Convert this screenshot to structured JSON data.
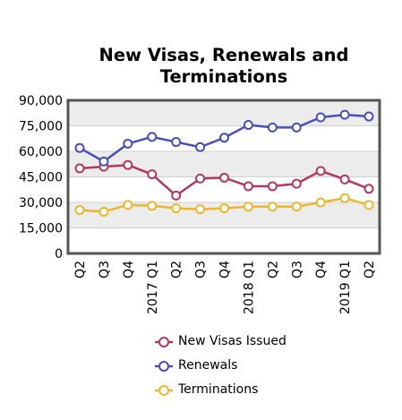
{
  "chart_data": {
    "type": "line",
    "title_lines": [
      "New Visas, Renewals and",
      "Terminations"
    ],
    "categories": [
      "Q2",
      "Q3",
      "Q4",
      "2017 Q1",
      "Q2",
      "Q3",
      "Q4",
      "2018 Q1",
      "Q2",
      "Q3",
      "Q4",
      "2019 Q1",
      "Q2"
    ],
    "ylim": [
      0,
      90000
    ],
    "yticks": [
      0,
      15000,
      30000,
      45000,
      60000,
      75000,
      90000
    ],
    "ytick_labels": [
      "0",
      "15,000",
      "30,000",
      "45,000",
      "60,000",
      "75,000",
      "90,000"
    ],
    "grid": true,
    "legend_position": "bottom",
    "series": [
      {
        "name": "New Visas Issued",
        "color": "#b03a5e",
        "values": [
          50000,
          51000,
          52000,
          46500,
          34000,
          44000,
          44500,
          39500,
          39500,
          41000,
          48500,
          43500,
          38000
        ]
      },
      {
        "name": "Renewals",
        "color": "#4a4fb8",
        "values": [
          62000,
          54000,
          64500,
          68500,
          65500,
          62500,
          68000,
          75500,
          74000,
          74000,
          80000,
          81500,
          80500
        ]
      },
      {
        "name": "Terminations",
        "color": "#e8b830",
        "values": [
          25500,
          24500,
          28500,
          28000,
          26500,
          26000,
          26500,
          27500,
          27500,
          27500,
          30000,
          32500,
          28500
        ]
      }
    ]
  }
}
